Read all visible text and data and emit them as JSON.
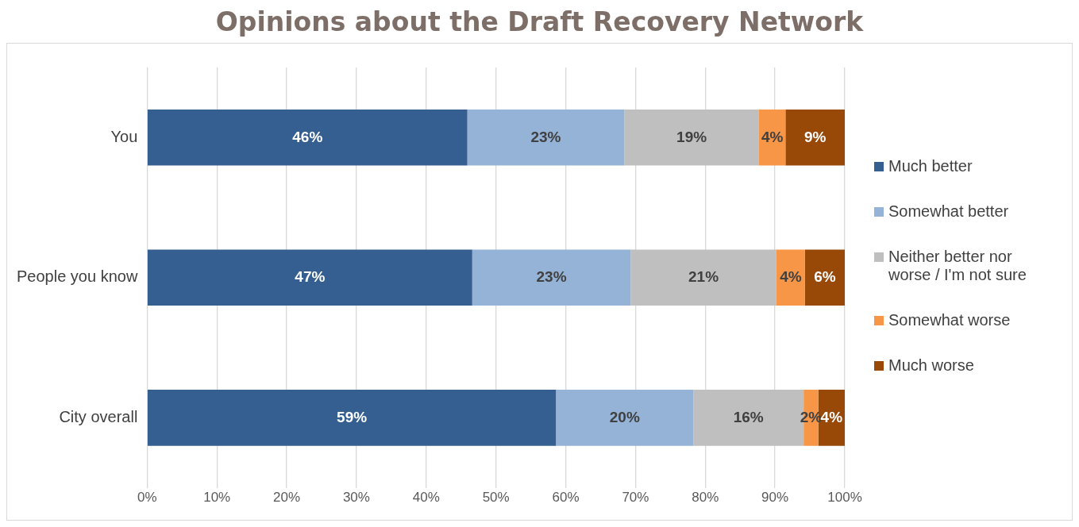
{
  "chart_data": {
    "type": "bar",
    "title": "Opinions about the Draft Recovery Network",
    "orientation": "horizontal",
    "stacked": true,
    "categories": [
      "You",
      "People you know",
      "City overall"
    ],
    "series": [
      {
        "name": "Much better",
        "color": "#365f91",
        "values": [
          45.9,
          46.6,
          58.6
        ],
        "value_labels": [
          "46%",
          "47%",
          "59%"
        ]
      },
      {
        "name": "Somewhat better",
        "color": "#95b3d7",
        "values": [
          22.5,
          22.7,
          19.7
        ],
        "value_labels": [
          "23%",
          "23%",
          "20%"
        ]
      },
      {
        "name": "Neither better nor worse / I'm not sure",
        "color": "#bfbfbf",
        "values": [
          19.3,
          20.9,
          15.8
        ],
        "value_labels": [
          "19%",
          "21%",
          "16%"
        ]
      },
      {
        "name": "Somewhat worse",
        "color": "#f79646",
        "values": [
          3.8,
          4.1,
          2.1
        ],
        "value_labels": [
          "4%",
          "4%",
          "2%"
        ]
      },
      {
        "name": "Much worse",
        "color": "#984807",
        "values": [
          8.5,
          5.7,
          3.8
        ],
        "value_labels": [
          "9%",
          "6%",
          "4%"
        ]
      }
    ],
    "xlim": [
      0,
      100
    ],
    "xticks": [
      {
        "value": 0,
        "label": "0%"
      },
      {
        "value": 10,
        "label": "10%"
      },
      {
        "value": 20,
        "label": "20%"
      },
      {
        "value": 30,
        "label": "30%"
      },
      {
        "value": 40,
        "label": "40%"
      },
      {
        "value": 50,
        "label": "50%"
      },
      {
        "value": 60,
        "label": "60%"
      },
      {
        "value": 70,
        "label": "70%"
      },
      {
        "value": 80,
        "label": "80%"
      },
      {
        "value": 90,
        "label": "90%"
      },
      {
        "value": 100,
        "label": "100%"
      }
    ],
    "grid": "x",
    "legend": "right"
  }
}
